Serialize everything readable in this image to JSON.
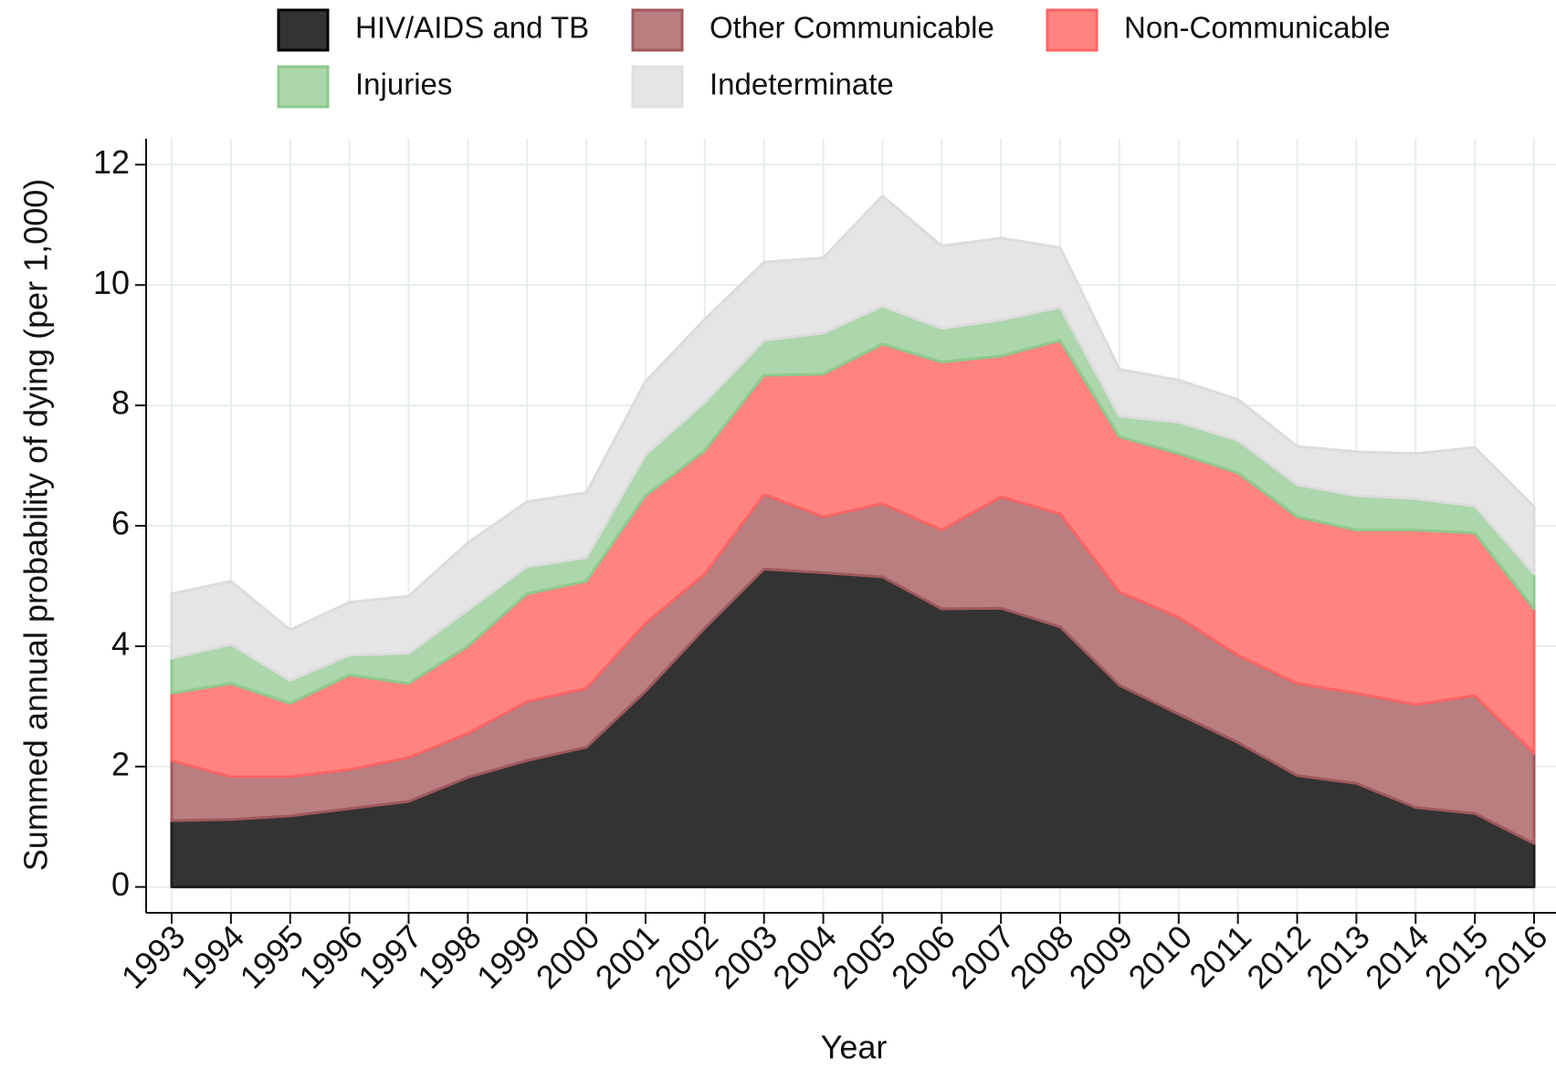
{
  "chart_data": {
    "type": "stacked-area",
    "x_label": "Year",
    "y_label": "Summed annual probability of dying (per 1,000)",
    "categories": [
      "1993",
      "1994",
      "1995",
      "1996",
      "1997",
      "1998",
      "1999",
      "2000",
      "2001",
      "2002",
      "2003",
      "2004",
      "2005",
      "2006",
      "2007",
      "2008",
      "2009",
      "2010",
      "2011",
      "2012",
      "2013",
      "2014",
      "2015",
      "2016"
    ],
    "series": [
      {
        "name": "HIV/AIDS and TB",
        "color": "#333333",
        "values": [
          1.1,
          1.12,
          1.18,
          1.3,
          1.42,
          1.82,
          2.1,
          2.32,
          3.25,
          4.3,
          5.28,
          5.22,
          5.15,
          4.62,
          4.63,
          4.32,
          3.35,
          2.87,
          2.4,
          1.85,
          1.72,
          1.32,
          1.22,
          0.72
        ]
      },
      {
        "name": "Other Communicable",
        "color": "#b87e80",
        "values": [
          1.0,
          0.71,
          0.65,
          0.65,
          0.73,
          0.73,
          0.98,
          0.98,
          1.13,
          0.9,
          1.24,
          0.93,
          1.22,
          1.31,
          1.85,
          1.88,
          1.55,
          1.61,
          1.45,
          1.53,
          1.5,
          1.71,
          1.96,
          1.5
        ]
      },
      {
        "name": "Non-Communicable",
        "color": "#ff8480",
        "values": [
          1.12,
          1.55,
          1.22,
          1.57,
          1.23,
          1.45,
          1.79,
          1.78,
          2.12,
          2.05,
          1.98,
          2.37,
          2.65,
          2.79,
          2.34,
          2.88,
          2.58,
          2.72,
          3.03,
          2.77,
          2.71,
          2.9,
          2.7,
          2.4
        ]
      },
      {
        "name": "Injuries",
        "color": "#acd6ab",
        "values": [
          0.58,
          0.65,
          0.38,
          0.33,
          0.5,
          0.6,
          0.45,
          0.39,
          0.68,
          0.8,
          0.58,
          0.68,
          0.63,
          0.56,
          0.6,
          0.55,
          0.34,
          0.52,
          0.54,
          0.53,
          0.57,
          0.52,
          0.45,
          0.58
        ]
      },
      {
        "name": "Indeterminate",
        "color": "#e5e5e5",
        "values": [
          1.07,
          1.05,
          0.84,
          0.88,
          0.95,
          1.12,
          1.08,
          1.08,
          1.22,
          1.38,
          1.3,
          1.25,
          1.83,
          1.37,
          1.36,
          0.99,
          0.78,
          0.7,
          0.68,
          0.64,
          0.73,
          0.75,
          0.97,
          1.12
        ]
      }
    ],
    "ylim": [
      -0.43,
      12.43
    ],
    "yticks": [
      0,
      2,
      4,
      6,
      8,
      10,
      12
    ],
    "grid": true
  }
}
